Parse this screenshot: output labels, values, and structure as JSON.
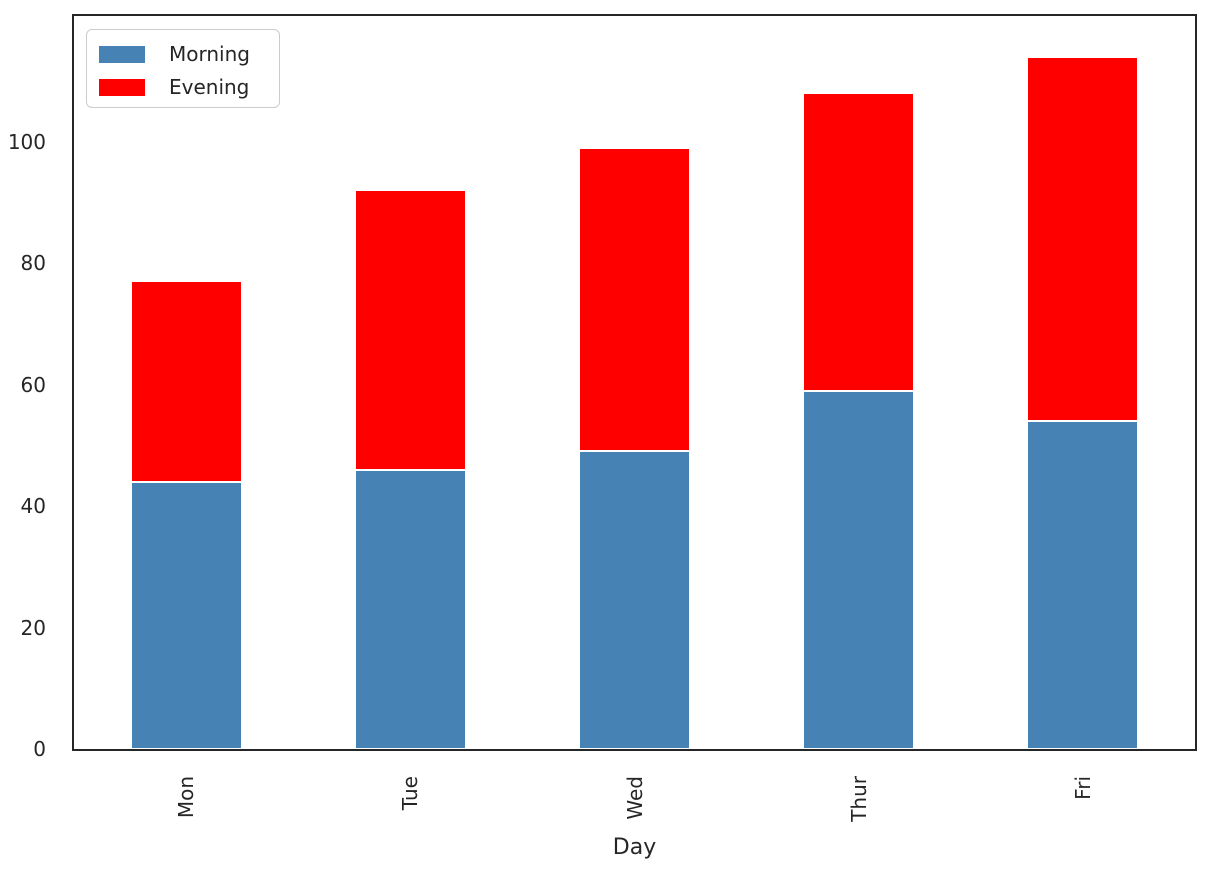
{
  "chart_data": {
    "type": "bar",
    "stacked": true,
    "title": "",
    "xlabel": "Day",
    "ylabel": "",
    "categories": [
      "Mon",
      "Tue",
      "Wed",
      "Thur",
      "Fri"
    ],
    "series": [
      {
        "name": "Morning",
        "color": "#4682b4",
        "values": [
          44,
          46,
          49,
          59,
          54
        ]
      },
      {
        "name": "Evening",
        "color": "#ff0000",
        "values": [
          33,
          46,
          50,
          49,
          60
        ]
      }
    ],
    "stacked_totals": [
      77,
      92,
      99,
      108,
      114
    ],
    "yticks": [
      0,
      20,
      40,
      60,
      80,
      100
    ],
    "ylim": [
      0,
      120.7
    ],
    "xtick_rotation": 90,
    "grid": false,
    "legend": {
      "position": "upper-left",
      "entries": [
        "Morning",
        "Evening"
      ]
    },
    "bar_edge_color": "#ffffff",
    "bar_width_fraction": 0.494
  },
  "style": {
    "background": "#ffffff",
    "spine_color": "#262626",
    "text_color": "#262626",
    "legend_border_color": "#cccccc"
  }
}
